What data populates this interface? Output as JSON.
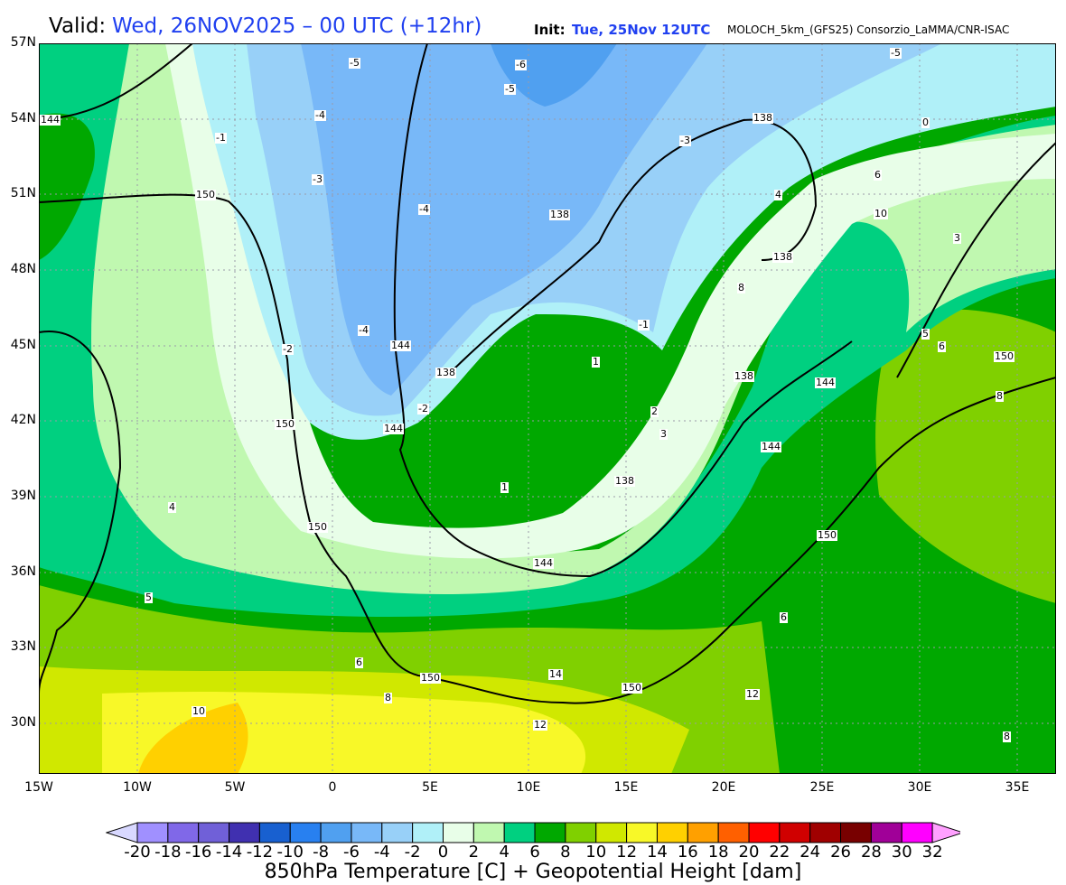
{
  "header": {
    "valid_label": "Valid:",
    "valid_value": "Wed, 26NOV2025 – 00 UTC (+12hr)",
    "init_label": "Init:",
    "init_value": "Tue, 25Nov 12UTC",
    "model": "MOLOCH_5km_(GFS25) Consorzio_LaMMA/CNR-ISAC"
  },
  "axes": {
    "lat_labels": [
      "57N",
      "54N",
      "51N",
      "48N",
      "45N",
      "42N",
      "39N",
      "36N",
      "33N",
      "30N"
    ],
    "lon_labels": [
      "15W",
      "10W",
      "5W",
      "0",
      "5E",
      "10E",
      "15E",
      "20E",
      "25E",
      "30E",
      "35E"
    ]
  },
  "map_labels": {
    "heights": [
      "150",
      "150",
      "150",
      "150",
      "150",
      "150",
      "144",
      "144",
      "144",
      "144",
      "144",
      "138",
      "138",
      "138",
      "138",
      "138",
      "144",
      "138",
      "150"
    ],
    "temps": [
      "-5",
      "-6",
      "-5",
      "-5",
      "-4",
      "-4",
      "-4",
      "-3",
      "-2",
      "-1",
      "-3",
      "0",
      "1",
      "1",
      "2",
      "3",
      "4",
      "5",
      "6",
      "8",
      "10",
      "12",
      "14",
      "12",
      "10",
      "8",
      "6",
      "4",
      "3",
      "6",
      "8",
      "-2",
      "-1",
      "5",
      "6",
      "8"
    ]
  },
  "colorbar": {
    "title": "850hPa Temperature [C] + Geopotential Height [dam]",
    "ticks": [
      "-20",
      "-18",
      "-16",
      "-14",
      "-12",
      "-10",
      "-8",
      "-6",
      "-4",
      "-2",
      "0",
      "2",
      "4",
      "6",
      "8",
      "10",
      "12",
      "14",
      "16",
      "18",
      "20",
      "22",
      "24",
      "26",
      "28",
      "30",
      "32"
    ],
    "colors": [
      "#a090ff",
      "#8068e8",
      "#7060d8",
      "#4030b0",
      "#1860d0",
      "#2880f0",
      "#50a0f0",
      "#78b8f8",
      "#98d0f8",
      "#b0f0f8",
      "#e8fee8",
      "#c0f8b0",
      "#00d080",
      "#00a800",
      "#80d000",
      "#d0e800",
      "#f8f828",
      "#ffd000",
      "#ffa000",
      "#ff6000",
      "#ff0000",
      "#d00000",
      "#a00000",
      "#780000",
      "#a00098",
      "#ff00ff"
    ],
    "under_color": "#d8d8ff",
    "over_color": "#ffa0ff"
  }
}
